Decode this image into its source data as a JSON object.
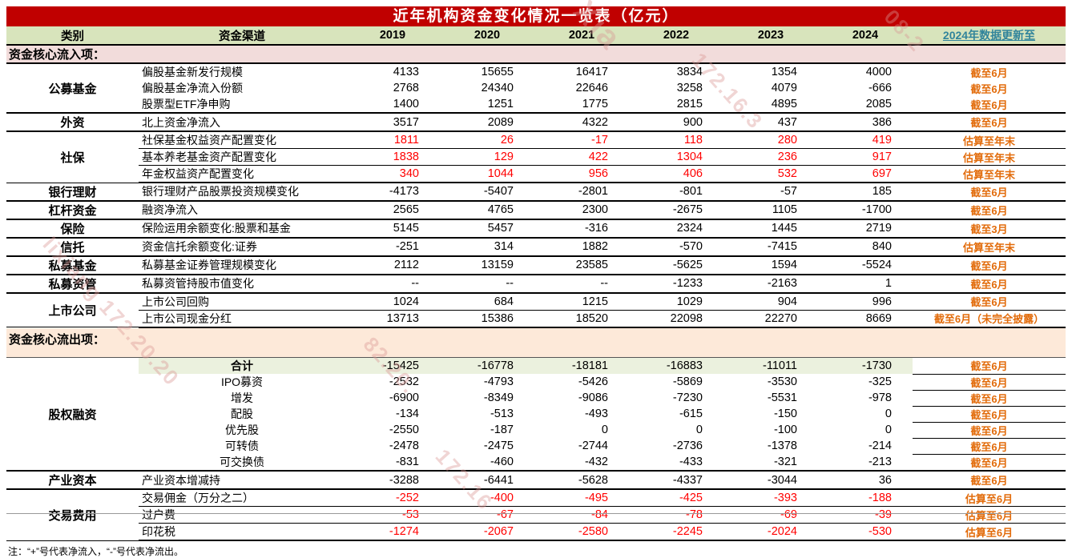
{
  "title": "近年机构资金变化情况一览表（亿元）",
  "columns": [
    "类别",
    "资金渠道",
    "2019",
    "2020",
    "2021",
    "2022",
    "2023",
    "2024",
    "2024年数据更新至"
  ],
  "note": "注：“+”号代表净流入，“-”号代表净流出。",
  "colors": {
    "title_bg": "#c00000",
    "header_bg": "#d8e4bc",
    "inflow_bg": "#f2dcdb",
    "outflow_bg": "#fde9d9",
    "total_highlight": "#ebf1de",
    "negative_red": "#ff0000",
    "update_orange": "#e26b0a",
    "update_header_teal": "#31849b"
  },
  "watermark_fragments": [
    "Xia",
    "172.16.3",
    "08-2",
    "lixiang 172.20.20",
    "82.20.",
    "172.16"
  ],
  "sections": [
    {
      "label": "资金核心流入项：",
      "style": "inflow",
      "blocks": [
        {
          "cat": "公募基金",
          "rows": [
            {
              "ch": "偏股基金新发行规模",
              "v": [
                "4133",
                "15655",
                "16417",
                "3834",
                "1354",
                "4000"
              ],
              "u": "截至6月"
            },
            {
              "ch": "偏股基金净流入份额",
              "v": [
                "2768",
                "24340",
                "22646",
                "3258",
                "4079",
                "-666"
              ],
              "u": "截至6月"
            },
            {
              "ch": "股票型ETF净申购",
              "v": [
                "1400",
                "1251",
                "1775",
                "2815",
                "4895",
                "2085"
              ],
              "u": "截至6月"
            }
          ]
        },
        {
          "cat": "外资",
          "rows": [
            {
              "ch": "北上资金净流入",
              "v": [
                "3517",
                "2089",
                "4322",
                "900",
                "437",
                "386"
              ],
              "u": "截至6月"
            }
          ]
        },
        {
          "cat": "社保",
          "red": true,
          "thin": true,
          "rows": [
            {
              "ch": "社保基金权益资产配置变化",
              "v": [
                "1811",
                "26",
                "-17",
                "118",
                "280",
                "419"
              ],
              "u": "估算至年末"
            },
            {
              "ch": "基本养老基金资产配置变化",
              "v": [
                "1838",
                "129",
                "422",
                "1304",
                "236",
                "917"
              ],
              "u": "估算至年末"
            },
            {
              "ch": "年金权益资产配置变化",
              "v": [
                "340",
                "1044",
                "956",
                "406",
                "532",
                "697"
              ],
              "u": "估算至年末"
            }
          ]
        },
        {
          "cat": "银行理财",
          "rows": [
            {
              "ch": "银行理财产品股票投资规模变化",
              "v": [
                "-4173",
                "-5407",
                "-2801",
                "-801",
                "-57",
                "185"
              ],
              "u": "截至6月"
            }
          ]
        },
        {
          "cat": "杠杆资金",
          "rows": [
            {
              "ch": "融资净流入",
              "v": [
                "2565",
                "4765",
                "2300",
                "-2675",
                "1105",
                "-1700"
              ],
              "u": "截至6月"
            }
          ]
        },
        {
          "cat": "保险",
          "rows": [
            {
              "ch": "保险运用余额变化:股票和基金",
              "v": [
                "5145",
                "5457",
                "-316",
                "2324",
                "1445",
                "2719"
              ],
              "u": "截至3月"
            }
          ]
        },
        {
          "cat": "信托",
          "rows": [
            {
              "ch": "资金信托余额变化:证券",
              "v": [
                "-251",
                "314",
                "1882",
                "-570",
                "-7415",
                "840"
              ],
              "u": "估算至年末"
            }
          ]
        },
        {
          "cat": "私募基金",
          "rows": [
            {
              "ch": "私募基金证券管理规模变化",
              "v": [
                "2112",
                "13159",
                "23585",
                "-5625",
                "1594",
                "-5524"
              ],
              "u": "截至6月"
            }
          ]
        },
        {
          "cat": "私募资管",
          "rows": [
            {
              "ch": "私募资管持股市值变化",
              "v": [
                "--",
                "--",
                "--",
                "-1233",
                "-2163",
                "1"
              ],
              "u": "截至6月"
            }
          ]
        },
        {
          "cat": "上市公司",
          "thin": true,
          "rows": [
            {
              "ch": "上市公司回购",
              "v": [
                "1024",
                "684",
                "1215",
                "1029",
                "904",
                "996"
              ],
              "u": "截至6月"
            },
            {
              "ch": "上市公司现金分红",
              "v": [
                "13713",
                "15386",
                "18520",
                "22098",
                "22270",
                "8669"
              ],
              "u": "截至6月（未完全披露）"
            }
          ]
        }
      ]
    },
    {
      "label": "资金核心流出项：",
      "style": "outflow",
      "blocks": [
        {
          "cat": "股权融资",
          "rows": [
            {
              "ch": "合计",
              "bold": true,
              "center": true,
              "hl": true,
              "u9": true,
              "v": [
                "-15425",
                "-16778",
                "-18181",
                "-16883",
                "-11011",
                "-1730"
              ],
              "u": "截至6月"
            },
            {
              "ch": "IPO募资",
              "center": true,
              "u9": true,
              "v": [
                "-2532",
                "-4793",
                "-5426",
                "-5869",
                "-3530",
                "-325"
              ],
              "u": "截至6月"
            },
            {
              "ch": "增发",
              "center": true,
              "u9": true,
              "v": [
                "-6900",
                "-8349",
                "-9086",
                "-7230",
                "-5531",
                "-978"
              ],
              "u": "截至6月"
            },
            {
              "ch": "配股",
              "center": true,
              "u9": true,
              "v": [
                "-134",
                "-513",
                "-493",
                "-615",
                "-150",
                "0"
              ],
              "u": "截至6月"
            },
            {
              "ch": "优先股",
              "center": true,
              "u9": true,
              "v": [
                "-2550",
                "-187",
                "0",
                "0",
                "-100",
                "0"
              ],
              "u": "截至6月"
            },
            {
              "ch": "可转债",
              "center": true,
              "u9": true,
              "v": [
                "-2478",
                "-2475",
                "-2744",
                "-2736",
                "-1378",
                "-214"
              ],
              "u": "截至6月"
            },
            {
              "ch": "可交换债",
              "center": true,
              "v": [
                "-831",
                "-460",
                "-432",
                "-433",
                "-321",
                "-213"
              ],
              "u": "截至6月"
            }
          ]
        },
        {
          "cat": "产业资本",
          "rows": [
            {
              "ch": "产业资本增减持",
              "v": [
                "-3288",
                "-6441",
                "-5628",
                "-4337",
                "-3044",
                "36"
              ],
              "u": "截至6月"
            }
          ]
        },
        {
          "cat": "交易费用",
          "red": true,
          "thin": true,
          "rows": [
            {
              "ch": "交易佣金（万分之二）",
              "v": [
                "-252",
                "-400",
                "-495",
                "-425",
                "-393",
                "-188"
              ],
              "u": "估算至6月"
            },
            {
              "ch": "过户费",
              "v": [
                "-53",
                "-67",
                "-84",
                "-78",
                "-69",
                "-39"
              ],
              "u": "估算至6月"
            },
            {
              "ch": "印花税",
              "v": [
                "-1274",
                "-2067",
                "-2580",
                "-2245",
                "-2024",
                "-530"
              ],
              "u": "估算至6月"
            }
          ]
        }
      ]
    }
  ]
}
